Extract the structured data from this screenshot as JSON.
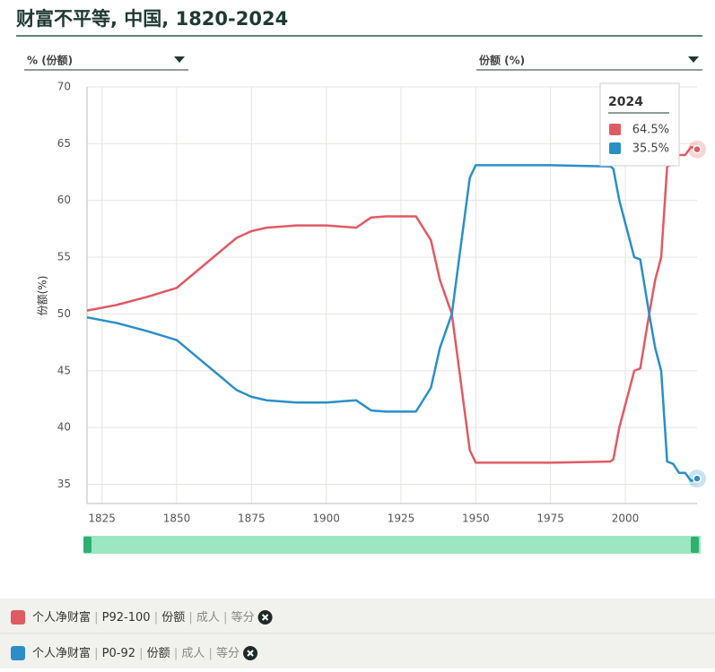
{
  "chart_data": {
    "type": "line",
    "title": "财富不平等, 中国, 1820-2024",
    "left_selector": "% (份额)",
    "right_selector": "份额 (%)",
    "ylabel": "份额(%)",
    "xlim": [
      1820,
      2024
    ],
    "xticks": [
      1825,
      1850,
      1875,
      1900,
      1925,
      1950,
      1975,
      2000
    ],
    "ylim": [
      33.3,
      70
    ],
    "yticks": [
      35,
      40,
      45,
      50,
      55,
      60,
      65,
      70
    ],
    "grid": true,
    "x": [
      1820,
      1830,
      1840,
      1850,
      1860,
      1870,
      1875,
      1880,
      1890,
      1900,
      1905,
      1910,
      1915,
      1920,
      1930,
      1935,
      1938,
      1942,
      1945,
      1948,
      1950,
      1975,
      1995,
      1996,
      1998,
      2000,
      2003,
      2005,
      2008,
      2010,
      2012,
      2014,
      2016,
      2018,
      2020,
      2022,
      2024
    ],
    "series": [
      {
        "name": "个人净财富",
        "tags": [
          "P92-100",
          "份额",
          "成人",
          "等分"
        ],
        "color": "#e05a63",
        "values": [
          50.3,
          50.8,
          51.5,
          52.3,
          54.5,
          56.7,
          57.3,
          57.6,
          57.8,
          57.8,
          57.7,
          57.6,
          58.5,
          58.6,
          58.6,
          56.5,
          53,
          50,
          44,
          38,
          36.9,
          36.9,
          37.0,
          37.2,
          40,
          42,
          45,
          45.2,
          50,
          53,
          55,
          63,
          63.2,
          64,
          64,
          64.7,
          64.5
        ]
      },
      {
        "name": "个人净财富",
        "tags": [
          "P0-92",
          "份额",
          "成人",
          "等分"
        ],
        "color": "#2a8fc8",
        "values": [
          49.7,
          49.2,
          48.5,
          47.7,
          45.5,
          43.3,
          42.7,
          42.4,
          42.2,
          42.2,
          42.3,
          42.4,
          41.5,
          41.4,
          41.4,
          43.5,
          47,
          50,
          56,
          62,
          63.1,
          63.1,
          63.0,
          62.8,
          60,
          58,
          55,
          54.8,
          50,
          47,
          45,
          37,
          36.8,
          36,
          36,
          35.3,
          35.5
        ]
      }
    ],
    "tooltip": {
      "title": "2024",
      "items": [
        "64.5%",
        "35.5%"
      ]
    }
  }
}
